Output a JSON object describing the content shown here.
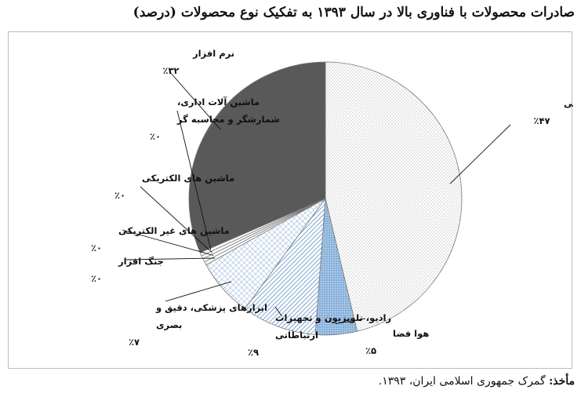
{
  "chart_data": {
    "type": "pie",
    "title": "صادرات محصولات با فناوری بالا در سال ۱۳۹۳ به تفکیک نوع محصولات (درصد)",
    "slices": [
      {
        "label_lines": [
          "داروسازی و شیمی"
        ],
        "value_label": "٪۴۷",
        "value": 47,
        "fill": "dots"
      },
      {
        "label_lines": [
          "هوا فضا"
        ],
        "value_label": "٪۵",
        "value": 5,
        "fill": "blue-dots"
      },
      {
        "label_lines": [
          "رادیو، تلویزیون و تجهیزات",
          "ارتباطاتی"
        ],
        "value_label": "٪۹",
        "value": 9,
        "fill": "diagonal"
      },
      {
        "label_lines": [
          "ابزارهای پزشکی، دقیق و",
          "بصری"
        ],
        "value_label": "٪۷",
        "value": 7,
        "fill": "crosshatch"
      },
      {
        "label_lines": [
          "جنگ افزار"
        ],
        "value_label": "٪۰",
        "value": 0.4,
        "fill": "white"
      },
      {
        "label_lines": [
          "ماشین های غیر الکتریکی"
        ],
        "value_label": "٪۰",
        "value": 0.4,
        "fill": "white"
      },
      {
        "label_lines": [
          "ماشین های الکتریکی"
        ],
        "value_label": "٪۰",
        "value": 0.4,
        "fill": "white"
      },
      {
        "label_lines": [
          "ماشین آلات اداری،",
          "شمارشگر و محاسبه گر"
        ],
        "value_label": "٪۰",
        "value": 0.4,
        "fill": "white"
      },
      {
        "label_lines": [
          "نرم افزار"
        ],
        "value_label": "٪۳۲",
        "value": 32,
        "fill": "dark"
      }
    ],
    "legend": "none",
    "colors": {
      "dark": "#595959",
      "blue": "#5b8fc7",
      "outline": "#7a7a7a"
    }
  },
  "source": {
    "label": "مأخذ:",
    "text": "گمرک جمهوری اسلامی ایران، ۱۳۹۳."
  }
}
